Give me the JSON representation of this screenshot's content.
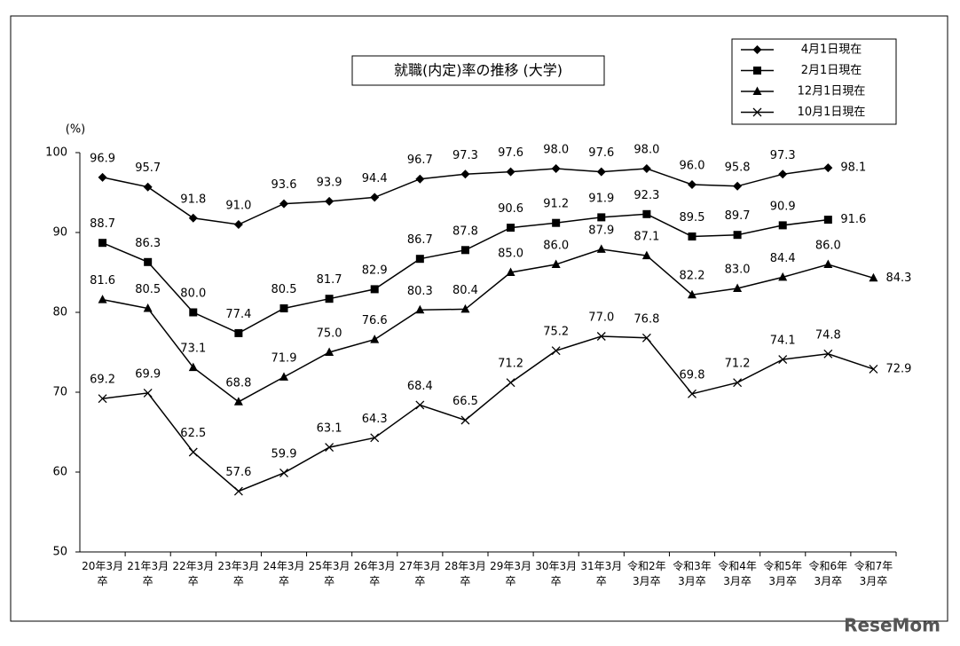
{
  "chart_data": {
    "type": "line",
    "title": "就職(内定)率の推移 (大学)",
    "y_unit": "(%)",
    "categories": [
      "20年3月\n卒",
      "21年3月\n卒",
      "22年3月\n卒",
      "23年3月\n卒",
      "24年3月\n卒",
      "25年3月\n卒",
      "26年3月\n卒",
      "27年3月\n卒",
      "28年3月\n卒",
      "29年3月\n卒",
      "30年3月\n卒",
      "31年3月\n卒",
      "令和2年\n3月卒",
      "令和3年\n3月卒",
      "令和4年\n3月卒",
      "令和5年\n3月卒",
      "令和6年\n3月卒",
      "令和7年\n3月卒"
    ],
    "series": [
      {
        "name": "4月1日現在",
        "color": "#000000",
        "marker": "diamond",
        "values": [
          96.9,
          95.7,
          91.8,
          91.0,
          93.6,
          93.9,
          94.4,
          96.7,
          97.3,
          97.6,
          98.0,
          97.6,
          98.0,
          96.0,
          95.8,
          97.3,
          98.1,
          null
        ],
        "value_labels": [
          "96.9",
          "95.7",
          "91.8",
          "91.0",
          "93.6",
          "93.9",
          "94.4",
          "96.7",
          "97.3",
          "97.6",
          "98.0",
          "97.6",
          "98.0",
          "96.0",
          "95.8",
          "97.3",
          "98.1",
          null
        ]
      },
      {
        "name": "2月1日現在",
        "color": "#000000",
        "marker": "square",
        "values": [
          88.7,
          86.3,
          80.0,
          77.4,
          80.5,
          81.7,
          82.9,
          86.7,
          87.8,
          90.6,
          91.2,
          91.9,
          92.3,
          89.5,
          89.7,
          90.9,
          91.6,
          null
        ],
        "value_labels": [
          "88.7",
          "86.3",
          "80.0",
          "77.4",
          "80.5",
          "81.7",
          "82.9",
          "86.7",
          "87.8",
          "90.6",
          "91.2",
          "91.9",
          "92.3",
          "89.5",
          "89.7",
          "90.9",
          "91.6",
          null
        ]
      },
      {
        "name": "12月1日現在",
        "color": "#000000",
        "marker": "triangle",
        "values": [
          81.6,
          80.5,
          73.1,
          68.8,
          71.9,
          75.0,
          76.6,
          80.3,
          80.4,
          85.0,
          86.0,
          87.9,
          87.1,
          82.2,
          83.0,
          84.4,
          86.0,
          84.3
        ],
        "value_labels": [
          "81.6",
          "80.5",
          "73.1",
          "68.8",
          "71.9",
          "75.0",
          "76.6",
          "80.3",
          "80.4",
          "85.0",
          "86.0",
          "87.9",
          "87.1",
          "82.2",
          "83.0",
          "84.4",
          "86.0",
          "84.3"
        ]
      },
      {
        "name": "10月1日現在",
        "color": "#000000",
        "marker": "x",
        "values": [
          69.2,
          69.9,
          62.5,
          57.6,
          59.9,
          63.1,
          64.3,
          68.4,
          66.5,
          71.2,
          75.2,
          77.0,
          76.8,
          69.8,
          71.2,
          74.1,
          74.8,
          72.9
        ],
        "value_labels": [
          "69.2",
          "69.9",
          "62.5",
          "57.6",
          "59.9",
          "63.1",
          "64.3",
          "68.4",
          "66.5",
          "71.2",
          "75.2",
          "77.0",
          "76.8",
          "69.8",
          "71.2",
          "74.1",
          "74.8",
          "72.9"
        ]
      }
    ],
    "ylim": [
      50,
      100
    ],
    "yticks": [
      50,
      60,
      70,
      80,
      90,
      100
    ],
    "grid": false,
    "legend": "top-right",
    "watermark": "ReseMom"
  }
}
